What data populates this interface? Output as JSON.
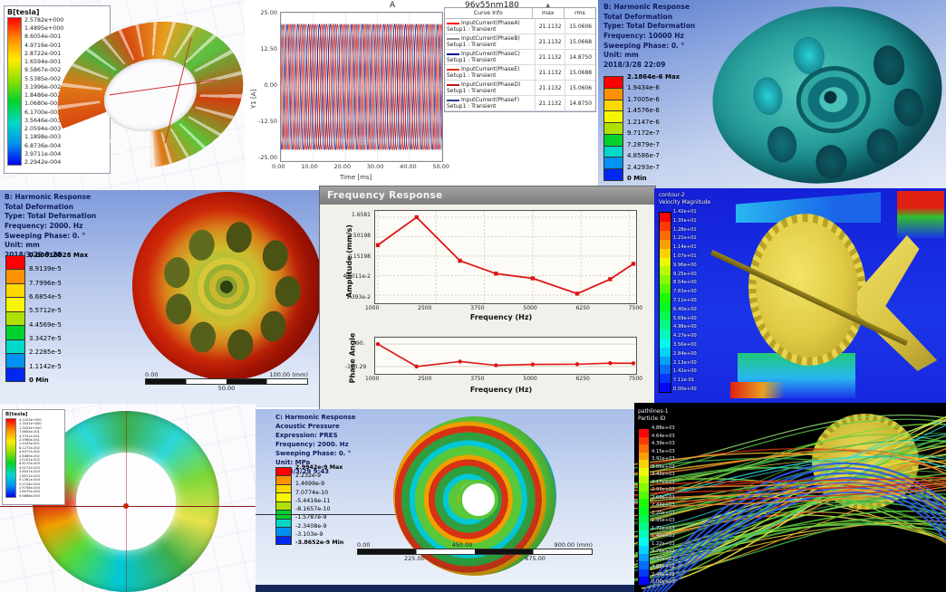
{
  "panels": {
    "maxwell_top": {
      "legend_title": "B[tesla]",
      "legend_values": [
        "2.5782e+000",
        "1.4895e+000",
        "8.6054e-001",
        "4.9716e-001",
        "2.8722e-001",
        "1.6594e-001",
        "9.5867e-002",
        "5.5385e-002",
        "3.1996e-002",
        "1.8486e-002",
        "1.0680e-002",
        "6.1700e-003",
        "3.5646e-003",
        "2.0594e-003",
        "1.1898e-003",
        "6.8736e-004",
        "3.9711e-004",
        "2.2942e-004"
      ]
    },
    "current_plot": {
      "legend": {
        "header": {
          "info": "Curve Info",
          "max": "max",
          "rms": "rms"
        },
        "rows": [
          {
            "name": "InputCurrent(PhaseA)",
            "setup": "Setup1 : Transient",
            "max": "21.1132",
            "rms": "15.0606",
            "color": "#ff0000"
          },
          {
            "name": "InputCurrent(PhaseB)",
            "setup": "Setup1 : Transient",
            "max": "21.1132",
            "rms": "15.0668",
            "color": "#8c8c94"
          },
          {
            "name": "InputCurrent(PhaseC)",
            "setup": "Setup1 : Transient",
            "max": "21.1132",
            "rms": "14.8750",
            "color": "#00008b"
          },
          {
            "name": "InputCurrent(PhaseE)",
            "setup": "Setup1 : Transient",
            "max": "21.1132",
            "rms": "15.0688",
            "color": "#e8320a"
          },
          {
            "name": "InputCurrent(PhaseD)",
            "setup": "Setup1 : Transient",
            "max": "21.1132",
            "rms": "15.0606",
            "color": "#c01414"
          },
          {
            "name": "InputCurrent(PhaseF)",
            "setup": "Setup1 : Transient",
            "max": "21.1132",
            "rms": "14.8750",
            "color": "#2a3f8f"
          }
        ]
      },
      "yticks": [
        "25.00",
        "12.50",
        "0.00",
        "-12.50",
        "-25.00"
      ],
      "xticks": [
        "0.00",
        "10.00",
        "20.00",
        "30.00",
        "40.00",
        "50.00"
      ]
    },
    "harmonic_top_right": {
      "info_lines": [
        "B: Harmonic Response",
        "Total Deformation",
        "Type: Total Deformation",
        "Frequency: 10000 Hz",
        "Sweeping Phase: 0. °",
        "Unit: mm",
        "2018/3/28 22:09"
      ],
      "legend_values": [
        "2.1864e-6 Max",
        "1.9434e-6",
        "1.7005e-6",
        "1.4576e-6",
        "1.2147e-6",
        "9.7172e-7",
        "7.2879e-7",
        "4.8586e-7",
        "2.4293e-7",
        "0 Min"
      ]
    },
    "harmonic_mid_left": {
      "info_lines": [
        "B: Harmonic Response",
        "Total Deformation",
        "Type: Total Deformation",
        "Frequency: 2000. Hz",
        "Sweeping Phase: 0. °",
        "Unit: mm",
        "2018/3/29 9:28"
      ],
      "legend_values": [
        "0.00010028 Max",
        "8.9139e-5",
        "7.7996e-5",
        "6.6854e-5",
        "5.5712e-5",
        "4.4569e-5",
        "3.3427e-5",
        "2.2285e-5",
        "1.1142e-5",
        "0 Min"
      ],
      "scale": {
        "left": "0.00",
        "right": "100.00 (mm)",
        "center": "50.00"
      }
    },
    "freq_response": {
      "window_title": "Frequency Response"
    },
    "cfd_velocity": {
      "legend_title_lines": [
        "contour-2",
        "Velocity Magnitude"
      ],
      "legend_values": [
        "1.42e+01",
        "1.35e+01",
        "1.28e+01",
        "1.21e+01",
        "1.14e+01",
        "1.07e+01",
        "9.96e+00",
        "9.25e+00",
        "8.54e+00",
        "7.83e+00",
        "7.11e+00",
        "6.40e+00",
        "5.69e+00",
        "4.98e+00",
        "4.27e+00",
        "3.56e+00",
        "2.84e+00",
        "2.13e+00",
        "1.42e+00",
        "7.11e-01",
        "0.00e+00"
      ]
    },
    "maxwell_bottom": {
      "legend_title": "B[tesla]",
      "legend_values": [
        "4.1253e+000",
        "2.3541e+000",
        "1.3433e+000",
        "7.6654e-001",
        "4.3741e-001",
        "2.4960e-001",
        "1.4243e-001",
        "8.1272e-002",
        "4.6377e-002",
        "2.6465e-002",
        "1.5101e-002",
        "8.6170e-003",
        "4.9172e-003",
        "2.8057e-003",
        "1.6011e-003",
        "9.1361e-004",
        "5.2134e-004",
        "2.9748e-004",
        "1.6975e-004",
        "9.6866e-005"
      ]
    },
    "acoustic": {
      "info_lines": [
        "C: Harmonic Response",
        "Acoustic Pressure",
        "Expression: PRES",
        "Frequency: 2000. Hz",
        "Sweeping Phase: 0. °",
        "Unit: MPa",
        "2018/3/29 9:43"
      ],
      "legend_values": [
        "2.9942e-9 Max",
        "2.232e-9",
        "1.4699e-9",
        "7.0774e-10",
        "-5.4416e-11",
        "-8.1657e-10",
        "-1.5787e-9",
        "-2.3408e-9",
        "-3.103e-9",
        "-3.8652e-9 Min"
      ],
      "scale": {
        "left": "0.00",
        "center": "450.00",
        "right": "900.00 (mm)",
        "sub_left": "225.00",
        "sub_right": "675.00"
      }
    },
    "pathlines": {
      "legend_title_lines": [
        "pathlines-1",
        "Particle ID"
      ],
      "legend_values": [
        "4.88e+03",
        "4.64e+03",
        "4.39e+03",
        "4.15e+03",
        "3.91e+03",
        "3.66e+03",
        "3.42e+03",
        "3.17e+03",
        "2.93e+03",
        "2.69e+03",
        "2.44e+03",
        "2.20e+03",
        "1.95e+03",
        "1.71e+03",
        "1.46e+03",
        "1.22e+03",
        "9.76e+02",
        "7.32e+02",
        "4.88e+02",
        "2.44e+02",
        "0.00e+00"
      ]
    }
  },
  "chart_data": [
    {
      "type": "line",
      "title": "A",
      "corner_label": "96v55nm180",
      "xlabel": "Time [ms]",
      "ylabel": "Y1 [A]",
      "xlim": [
        0,
        50
      ],
      "ylim": [
        -25,
        25
      ],
      "xticks": [
        0,
        10,
        20,
        30,
        40,
        50
      ],
      "yticks": [
        25,
        12.5,
        0,
        -12.5,
        -25
      ],
      "waveform": "sine",
      "amplitude": 21.1132,
      "period_ms": 3.3333,
      "series": [
        {
          "name": "InputCurrent(PhaseA)",
          "phase_deg": 0,
          "color": "#ff0000",
          "max": 21.1132,
          "rms": 15.0606
        },
        {
          "name": "InputCurrent(PhaseB)",
          "phase_deg": 300,
          "color": "#8c8c94",
          "max": 21.1132,
          "rms": 15.0668
        },
        {
          "name": "InputCurrent(PhaseC)",
          "phase_deg": 240,
          "color": "#00008b",
          "max": 21.1132,
          "rms": 14.875
        },
        {
          "name": "InputCurrent(PhaseE)",
          "phase_deg": 180,
          "color": "#e8320a",
          "max": 21.1132,
          "rms": 15.0688
        },
        {
          "name": "InputCurrent(PhaseD)",
          "phase_deg": 120,
          "color": "#c01414",
          "max": 21.1132,
          "rms": 15.0606
        },
        {
          "name": "InputCurrent(PhaseF)",
          "phase_deg": 60,
          "color": "#2a3f8f",
          "max": 21.1132,
          "rms": 14.875
        }
      ]
    },
    {
      "type": "line",
      "name": "amplitude-response",
      "ylabel": "Amplitude (mm/s)",
      "xlabel": "Frequency (Hz)",
      "yscale": "log",
      "ytick_labels": [
        "1.6581",
        "0.50198",
        "0.15198",
        "4.6011e-2",
        "1.393e-2"
      ],
      "yticks": [
        1.6581,
        0.50198,
        0.15198,
        0.046011,
        0.01393
      ],
      "xticks": [
        1000,
        2500,
        3750,
        5000,
        6250,
        7500
      ],
      "x": [
        1000,
        2000,
        3120,
        4050,
        5000,
        6150,
        7000,
        7600
      ],
      "y": [
        0.3,
        1.6581,
        0.115,
        0.052,
        0.039,
        0.0152,
        0.037,
        0.095
      ],
      "color": "#e01414"
    },
    {
      "type": "line",
      "name": "phase-response",
      "ylabel": "Phase Angle",
      "xlabel": "Frequency (Hz)",
      "ytick_labels": [
        "90.",
        "-150.29"
      ],
      "yticks": [
        90,
        -150.29
      ],
      "ylim": [
        -200,
        130
      ],
      "xticks": [
        1000,
        2500,
        3750,
        5000,
        6250,
        7500
      ],
      "x": [
        1000,
        2000,
        3120,
        4050,
        5000,
        6150,
        7000,
        7600
      ],
      "y": [
        90,
        -150.29,
        -97,
        -138,
        -128,
        -126,
        -114,
        -116
      ],
      "color": "#e01414"
    }
  ],
  "colors": {
    "ansys_bands": [
      "#ff0000",
      "#ff9100",
      "#ffd800",
      "#f6f600",
      "#b0e000",
      "#00d22d",
      "#00d8c8",
      "#0092f0",
      "#0028f0"
    ],
    "rainbow_stops": [
      "#ff0000",
      "#ff8c00",
      "#ffee00",
      "#8ce000",
      "#00d22d",
      "#00d8c8",
      "#0092f0",
      "#0000f0"
    ],
    "streamline_palette": [
      "#3fae4a",
      "#5fc84a",
      "#8ce06e",
      "#e8e24a",
      "#e8b02a",
      "#e8862a",
      "#d83214",
      "#2ad8d8",
      "#3fae4a",
      "#7fd838",
      "#e8e24a",
      "#58c838"
    ],
    "streamline_blue": "#2a55ee",
    "window_titlebar": "#8a8a8a"
  }
}
